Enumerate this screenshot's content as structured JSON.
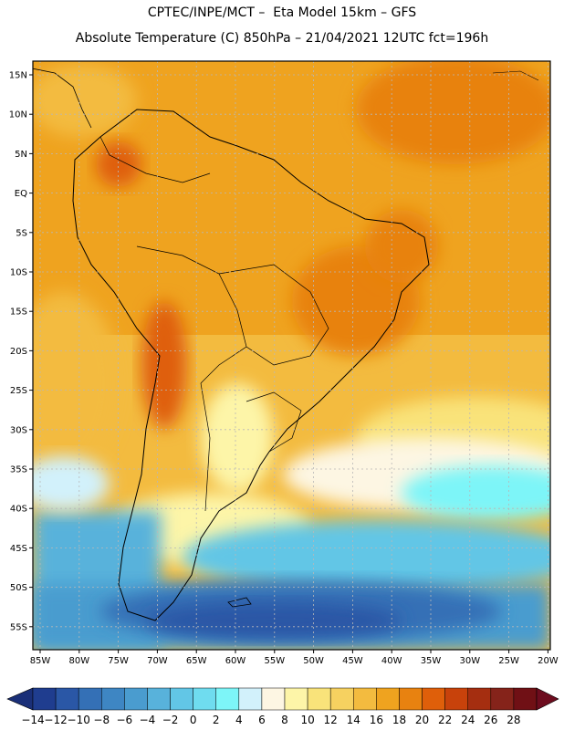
{
  "titles": {
    "line1": "CPTEC/INPE/MCT –  Eta Model 15km – GFS",
    "line2": "Absolute Temperature (C) 850hPa – 21/04/2021 12UTC fct=196h"
  },
  "axes": {
    "lat_labels": [
      "15N",
      "10N",
      "5N",
      "EQ",
      "5S",
      "10S",
      "15S",
      "20S",
      "25S",
      "30S",
      "35S",
      "40S",
      "45S",
      "50S",
      "55S"
    ],
    "lon_labels": [
      "85W",
      "80W",
      "75W",
      "70W",
      "65W",
      "60W",
      "55W",
      "50W",
      "45W",
      "40W",
      "35W",
      "30W",
      "25W",
      "20W"
    ]
  },
  "colorbar": {
    "labels": [
      "-14",
      "-12",
      "-10",
      "-8",
      "-6",
      "-4",
      "-2",
      "0",
      "2",
      "4",
      "6",
      "8",
      "10",
      "12",
      "14",
      "16",
      "18",
      "20",
      "22",
      "24",
      "26",
      "28"
    ],
    "colors": [
      "#1f3d8f",
      "#2a57a6",
      "#3470b6",
      "#3e86c3",
      "#4a9ccf",
      "#58b2db",
      "#62c6e6",
      "#6fdcef",
      "#7df5f8",
      "#d2f1fb",
      "#fdf6e3",
      "#fdf5a8",
      "#f9e37a",
      "#f6d160",
      "#f3bb3f",
      "#efa31f",
      "#e88210",
      "#df5f0a",
      "#c8420b",
      "#a52e10",
      "#85231a",
      "#701015"
    ],
    "min_arrow_color": "#1a2f78",
    "max_arrow_color": "#6d0c1e"
  }
}
